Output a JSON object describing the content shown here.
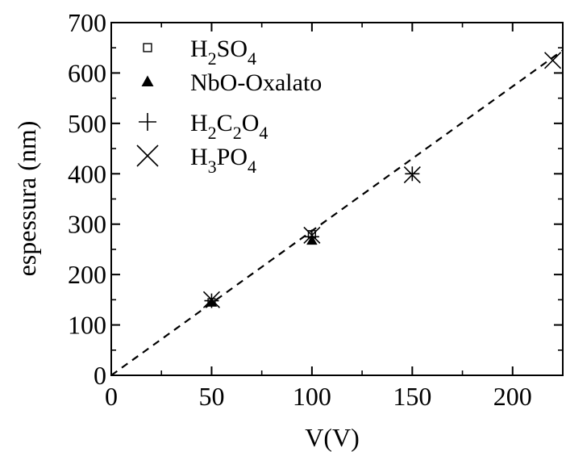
{
  "chart_data": {
    "type": "scatter",
    "title": "",
    "xlabel": "V(V)",
    "ylabel": "espessura (nm)",
    "xlim": [
      0,
      225
    ],
    "ylim": [
      0,
      700
    ],
    "x_ticks": [
      0,
      50,
      100,
      150,
      200
    ],
    "y_ticks": [
      0,
      100,
      200,
      300,
      400,
      500,
      600,
      700
    ],
    "x_tick_labels": [
      "0",
      "50",
      "100",
      "150",
      "200"
    ],
    "y_tick_labels": [
      "0",
      "100",
      "200",
      "300",
      "400",
      "500",
      "600",
      "700"
    ],
    "grid": false,
    "legend_position": "top-left",
    "series": [
      {
        "key": "h2so4",
        "name": "H2SO4",
        "legend": [
          {
            "t": "H"
          },
          {
            "t": "2",
            "sub": true
          },
          {
            "t": "SO"
          },
          {
            "t": "4",
            "sub": true
          }
        ],
        "marker": "open-square",
        "x": [
          50,
          100
        ],
        "y": [
          145,
          280
        ]
      },
      {
        "key": "nbo",
        "name": "NbO-Oxalato",
        "legend": [
          {
            "t": "NbO-Oxalato"
          }
        ],
        "marker": "filled-triangle",
        "x": [
          50,
          100
        ],
        "y": [
          145,
          268
        ]
      },
      {
        "key": "h2c2o4",
        "name": "H2C2O4",
        "legend": [
          {
            "t": "H"
          },
          {
            "t": "2",
            "sub": true
          },
          {
            "t": "C"
          },
          {
            "t": "2",
            "sub": true
          },
          {
            "t": "O"
          },
          {
            "t": "4",
            "sub": true
          }
        ],
        "marker": "plus",
        "x": [
          50,
          100,
          150
        ],
        "y": [
          148,
          275,
          400
        ]
      },
      {
        "key": "h3po4",
        "name": "H3PO4",
        "legend": [
          {
            "t": "H"
          },
          {
            "t": "3",
            "sub": true
          },
          {
            "t": "PO"
          },
          {
            "t": "4",
            "sub": true
          }
        ],
        "marker": "cross",
        "x": [
          50,
          100,
          150,
          220
        ],
        "y": [
          150,
          278,
          398,
          625
        ]
      }
    ],
    "fit_line": {
      "style": "dashed",
      "x": [
        0,
        225
      ],
      "y": [
        0,
        645
      ]
    }
  }
}
